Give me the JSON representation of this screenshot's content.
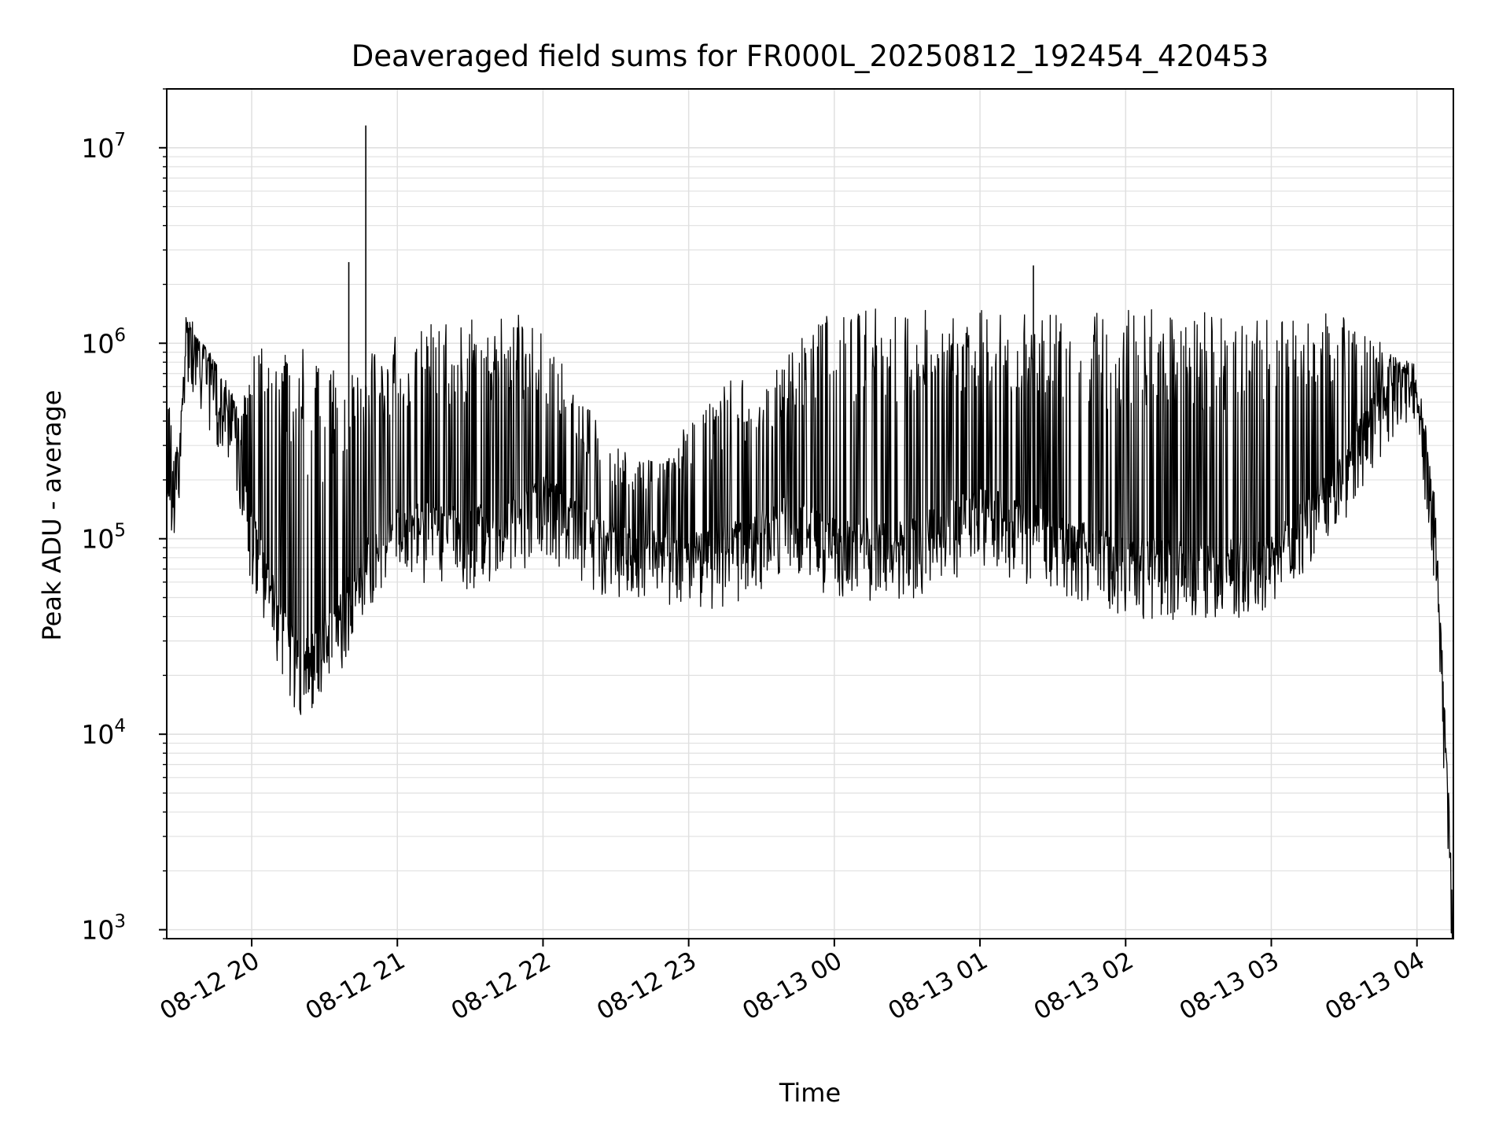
{
  "chart_data": {
    "type": "line",
    "title": "Deaveraged field sums for FR000L_20250812_192454_420453",
    "xlabel": "Time",
    "ylabel": "Peak ADU - average",
    "yscale": "log",
    "ylim": [
      900,
      20000000
    ],
    "xlim": [
      "2025-08-12 19:25",
      "2025-08-13 04:15"
    ],
    "x_tick_labels": [
      "08-12 20",
      "08-12 21",
      "08-12 22",
      "08-12 23",
      "08-13 00",
      "08-13 01",
      "08-13 02",
      "08-13 03",
      "08-13 04"
    ],
    "x_ticks": [
      "2025-08-12 20:00",
      "2025-08-12 21:00",
      "2025-08-12 22:00",
      "2025-08-12 23:00",
      "2025-08-13 00:00",
      "2025-08-13 01:00",
      "2025-08-13 02:00",
      "2025-08-13 03:00",
      "2025-08-13 04:00"
    ],
    "y_ticks": [
      1000,
      10000,
      100000,
      1000000,
      10000000
    ],
    "y_tick_labels": [
      {
        "base": "10",
        "exp": "3"
      },
      {
        "base": "10",
        "exp": "4"
      },
      {
        "base": "10",
        "exp": "5"
      },
      {
        "base": "10",
        "exp": "6"
      },
      {
        "base": "10",
        "exp": "7"
      }
    ],
    "grid": true,
    "line_color": "#000000",
    "grid_color": "#e0e0e0",
    "series": [
      {
        "envelope": [
          {
            "t": "2025-08-12 19:25",
            "base": 200000,
            "top": 550000
          },
          {
            "t": "2025-08-12 19:30",
            "base": 180000,
            "top": 280000
          },
          {
            "t": "2025-08-12 19:33",
            "base": 1000000,
            "top": 1400000
          },
          {
            "t": "2025-08-12 19:38",
            "base": 800000,
            "top": 1100000
          },
          {
            "t": "2025-08-12 19:45",
            "base": 550000,
            "top": 800000
          },
          {
            "t": "2025-08-12 19:55",
            "base": 250000,
            "top": 500000
          },
          {
            "t": "2025-08-12 20:00",
            "base": 100000,
            "top": 900000
          },
          {
            "t": "2025-08-12 20:10",
            "base": 40000,
            "top": 1000000
          },
          {
            "t": "2025-08-12 20:20",
            "base": 20000,
            "top": 1000000
          },
          {
            "t": "2025-08-12 20:30",
            "base": 28000,
            "top": 700000
          },
          {
            "t": "2025-08-12 20:40",
            "base": 45000,
            "top": 800000
          },
          {
            "t": "2025-08-12 20:50",
            "base": 80000,
            "top": 1000000
          },
          {
            "t": "2025-08-12 21:00",
            "base": 110000,
            "top": 1200000
          },
          {
            "t": "2025-08-12 21:30",
            "base": 100000,
            "top": 1400000
          },
          {
            "t": "2025-08-12 21:50",
            "base": 120000,
            "top": 1400000
          },
          {
            "t": "2025-08-12 22:00",
            "base": 150000,
            "top": 1100000
          },
          {
            "t": "2025-08-12 22:15",
            "base": 110000,
            "top": 600000
          },
          {
            "t": "2025-08-12 22:30",
            "base": 85000,
            "top": 300000
          },
          {
            "t": "2025-08-12 22:45",
            "base": 80000,
            "top": 250000
          },
          {
            "t": "2025-08-12 23:00",
            "base": 75000,
            "top": 400000
          },
          {
            "t": "2025-08-12 23:20",
            "base": 85000,
            "top": 700000
          },
          {
            "t": "2025-08-12 23:40",
            "base": 120000,
            "top": 900000
          },
          {
            "t": "2025-08-13 00:00",
            "base": 90000,
            "top": 1500000
          },
          {
            "t": "2025-08-13 00:30",
            "base": 85000,
            "top": 1500000
          },
          {
            "t": "2025-08-13 01:00",
            "base": 130000,
            "top": 1500000
          },
          {
            "t": "2025-08-13 01:30",
            "base": 95000,
            "top": 1500000
          },
          {
            "t": "2025-08-13 02:00",
            "base": 70000,
            "top": 1500000
          },
          {
            "t": "2025-08-13 02:30",
            "base": 70000,
            "top": 1500000
          },
          {
            "t": "2025-08-13 03:00",
            "base": 70000,
            "top": 1500000
          },
          {
            "t": "2025-08-13 03:30",
            "base": 200000,
            "top": 1400000
          },
          {
            "t": "2025-08-13 03:50",
            "base": 600000,
            "top": 900000
          },
          {
            "t": "2025-08-13 04:00",
            "base": 500000,
            "top": 800000
          },
          {
            "t": "2025-08-13 04:05",
            "base": 200000,
            "top": 250000
          },
          {
            "t": "2025-08-13 04:08",
            "base": 80000,
            "top": 150000
          },
          {
            "t": "2025-08-13 04:15",
            "base": 1000,
            "top": 1000
          }
        ],
        "peaks": [
          {
            "t": "2025-08-12 20:40",
            "value": 2600000
          },
          {
            "t": "2025-08-12 20:47",
            "value": 13000000
          },
          {
            "t": "2025-08-13 01:22",
            "value": 2500000
          }
        ]
      }
    ]
  }
}
